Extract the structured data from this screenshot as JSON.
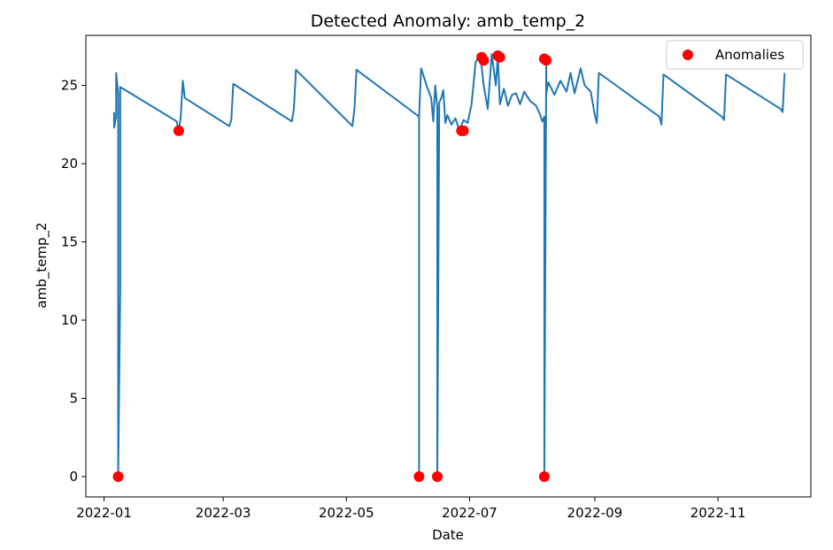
{
  "chart_data": {
    "type": "line",
    "title": "Detected Anomaly: amb_temp_2",
    "xlabel": "Date",
    "ylabel": "amb_temp_2",
    "x_range": [
      "2021-12-23",
      "2022-12-17"
    ],
    "ylim": [
      -1.3,
      28.2
    ],
    "x_ticks": [
      "2022-01",
      "2022-03",
      "2022-05",
      "2022-07",
      "2022-09",
      "2022-11"
    ],
    "y_ticks": [
      0,
      5,
      10,
      15,
      20,
      25
    ],
    "grid": false,
    "legend": {
      "placement": "top-right",
      "entries": [
        "Anomalies"
      ]
    },
    "colors": {
      "line": "#1f77b4",
      "anomaly": "#ff0000"
    },
    "series": [
      {
        "name": "",
        "x": [
          "2022-01-06",
          "2022-01-06",
          "2022-01-07",
          "2022-01-07",
          "2022-01-08",
          "2022-01-08",
          "2022-01-08",
          "2022-01-09",
          "2022-01-09",
          "2022-02-06",
          "2022-02-07",
          "2022-02-08",
          "2022-02-09",
          "2022-02-10",
          "2022-03-04",
          "2022-03-05",
          "2022-03-06",
          "2022-04-04",
          "2022-04-05",
          "2022-04-06",
          "2022-05-04",
          "2022-05-05",
          "2022-05-06",
          "2022-06-04",
          "2022-06-06",
          "2022-06-06",
          "2022-06-06",
          "2022-06-07",
          "2022-06-10",
          "2022-06-12",
          "2022-06-13",
          "2022-06-14",
          "2022-06-15",
          "2022-06-15",
          "2022-06-16",
          "2022-06-17",
          "2022-06-18",
          "2022-06-19",
          "2022-06-20",
          "2022-06-22",
          "2022-06-24",
          "2022-06-26",
          "2022-06-28",
          "2022-06-30",
          "2022-07-02",
          "2022-07-04",
          "2022-07-06",
          "2022-07-07",
          "2022-07-08",
          "2022-07-10",
          "2022-07-12",
          "2022-07-14",
          "2022-07-15",
          "2022-07-16",
          "2022-07-18",
          "2022-07-20",
          "2022-07-22",
          "2022-07-24",
          "2022-07-26",
          "2022-07-28",
          "2022-07-31",
          "2022-08-03",
          "2022-08-05",
          "2022-08-06",
          "2022-08-07",
          "2022-08-07",
          "2022-08-08",
          "2022-08-08",
          "2022-08-09",
          "2022-08-12",
          "2022-08-15",
          "2022-08-18",
          "2022-08-20",
          "2022-08-22",
          "2022-08-25",
          "2022-08-27",
          "2022-08-30",
          "2022-09-01",
          "2022-09-02",
          "2022-09-03",
          "2022-10-03",
          "2022-10-04",
          "2022-10-05",
          "2022-11-03",
          "2022-11-04",
          "2022-11-05",
          "2022-12-02",
          "2022-12-03",
          "2022-12-04"
        ],
        "y": [
          23.3,
          22.3,
          23.0,
          25.8,
          24.5,
          12.0,
          0.0,
          12.0,
          24.9,
          22.7,
          22.0,
          23.0,
          25.3,
          24.2,
          22.4,
          22.8,
          25.1,
          22.7,
          23.5,
          26.0,
          22.4,
          23.5,
          26.0,
          23.2,
          23.0,
          0.0,
          23.0,
          26.1,
          24.9,
          24.2,
          22.7,
          25.0,
          23.6,
          0.0,
          23.9,
          24.2,
          24.7,
          22.6,
          23.1,
          22.5,
          22.9,
          22.1,
          22.8,
          22.6,
          23.8,
          26.5,
          26.9,
          26.2,
          25.0,
          23.5,
          27.0,
          25.0,
          26.9,
          23.8,
          24.8,
          23.7,
          24.4,
          24.5,
          23.8,
          24.6,
          24.0,
          23.7,
          23.1,
          22.7,
          23.0,
          0.0,
          26.7,
          24.5,
          25.2,
          24.4,
          25.3,
          24.6,
          25.8,
          24.5,
          26.1,
          25.0,
          24.6,
          23.1,
          22.6,
          25.8,
          23.0,
          22.5,
          25.7,
          23.0,
          22.8,
          25.7,
          23.5,
          23.3,
          25.8
        ]
      },
      {
        "name": "Anomalies",
        "x": [
          "2022-01-08",
          "2022-02-07",
          "2022-06-06",
          "2022-06-15",
          "2022-06-27",
          "2022-06-28",
          "2022-07-07",
          "2022-07-08",
          "2022-07-15",
          "2022-07-16",
          "2022-08-07",
          "2022-08-08",
          "2022-08-07"
        ],
        "y": [
          0.0,
          22.1,
          0.0,
          0.0,
          22.1,
          22.1,
          26.8,
          26.6,
          26.9,
          26.8,
          26.7,
          26.6,
          0.0
        ]
      }
    ]
  }
}
